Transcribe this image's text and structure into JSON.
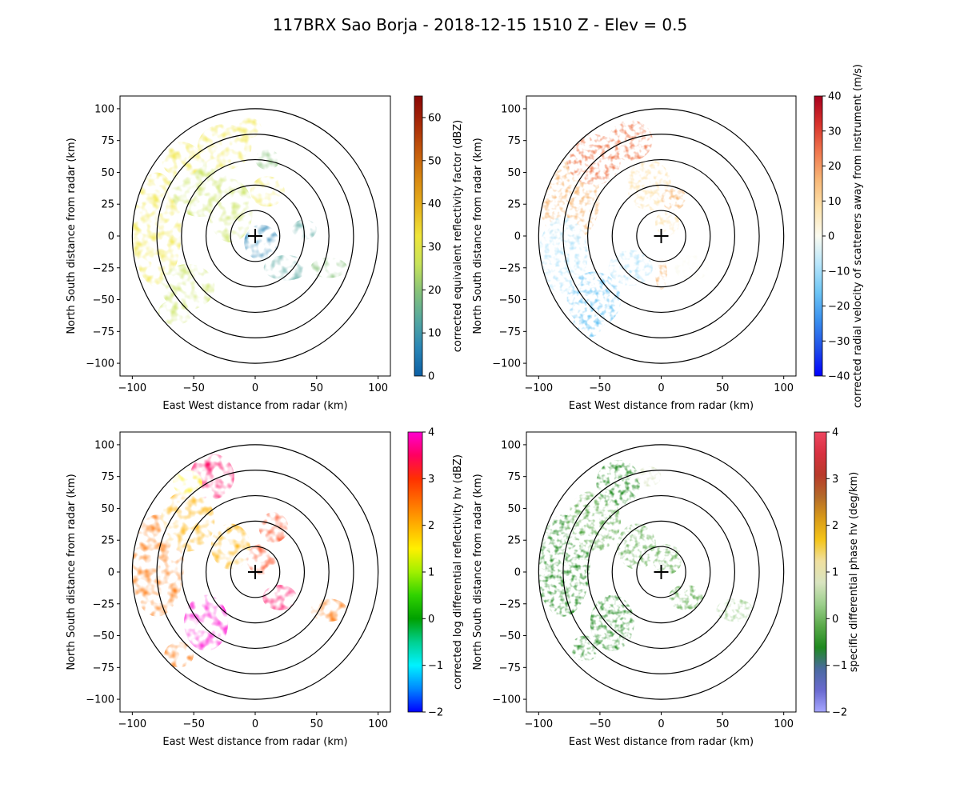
{
  "figure": {
    "title": "117BRX Sao Borja - 2018-12-15 1510 Z -  Elev = 0.5"
  },
  "chart_data": [
    {
      "type": "heatmap",
      "panel": "top-left",
      "variable": "corrected equivalent reflectivity factor",
      "title": "",
      "xlabel": "East West distance from radar (km)",
      "ylabel": "North South distance from radar (km)",
      "xlim": [
        -110,
        110
      ],
      "ylim": [
        -110,
        110
      ],
      "xticks": [
        -100,
        -50,
        0,
        50,
        100
      ],
      "yticks": [
        -100,
        -75,
        -50,
        -25,
        0,
        25,
        50,
        75,
        100
      ],
      "range_rings_km": [
        20,
        40,
        60,
        80,
        100
      ],
      "radar_location": [
        0,
        0
      ],
      "colorbar": {
        "label": "corrected equivalent reflectivity factor (dBZ)",
        "vmin": 0,
        "vmax": 65,
        "ticks": [
          0,
          10,
          20,
          30,
          40,
          50,
          60
        ],
        "colors": [
          "#0b5fa5",
          "#2a86b6",
          "#55a8a0",
          "#86c27a",
          "#c7e35a",
          "#efe53a",
          "#e7b41e",
          "#d98a12",
          "#c45a0c",
          "#a82a08",
          "#8a0606"
        ]
      }
    },
    {
      "type": "heatmap",
      "panel": "top-right",
      "variable": "corrected radial velocity of scatterers away from instrument",
      "title": "",
      "xlabel": "East West distance from radar (km)",
      "ylabel": "North South distance from radar (km)",
      "xlim": [
        -110,
        110
      ],
      "ylim": [
        -110,
        110
      ],
      "xticks": [
        -100,
        -50,
        0,
        50,
        100
      ],
      "yticks": [
        -100,
        -75,
        -50,
        -25,
        0,
        25,
        50,
        75,
        100
      ],
      "range_rings_km": [
        20,
        40,
        60,
        80,
        100
      ],
      "radar_location": [
        0,
        0
      ],
      "colorbar": {
        "label": "corrected radial velocity of scatterers away from instrument (m/s)",
        "vmin": -40,
        "vmax": 40,
        "ticks": [
          -40,
          -30,
          -20,
          -10,
          0,
          10,
          20,
          30,
          40
        ],
        "colors": [
          "#0000ff",
          "#2050e8",
          "#3a90ee",
          "#6ec6f5",
          "#b8e6fb",
          "#fbfbf0",
          "#fde3ad",
          "#f8b878",
          "#f0784e",
          "#d8322c",
          "#a8001e"
        ]
      }
    },
    {
      "type": "heatmap",
      "panel": "bottom-left",
      "variable": "corrected log differential reflectivity hv",
      "title": "",
      "xlabel": "East West distance from radar (km)",
      "ylabel": "North South distance from radar (km)",
      "xlim": [
        -110,
        110
      ],
      "ylim": [
        -110,
        110
      ],
      "xticks": [
        -100,
        -50,
        0,
        50,
        100
      ],
      "yticks": [
        -100,
        -75,
        -50,
        -25,
        0,
        25,
        50,
        75,
        100
      ],
      "range_rings_km": [
        20,
        40,
        60,
        80,
        100
      ],
      "radar_location": [
        0,
        0
      ],
      "colorbar": {
        "label": "corrected log differential reflectivity hv (dBZ)",
        "vmin": -2,
        "vmax": 4,
        "ticks": [
          -2,
          -1,
          0,
          1,
          2,
          3,
          4
        ],
        "colors": [
          "#0000ff",
          "#0088ff",
          "#00f2ff",
          "#00d090",
          "#00a000",
          "#30d200",
          "#a0f000",
          "#fff000",
          "#ffb000",
          "#ff7000",
          "#ff3000",
          "#ff0060",
          "#ff00d0"
        ]
      }
    },
    {
      "type": "heatmap",
      "panel": "bottom-right",
      "variable": "specific differential phase hv",
      "title": "",
      "xlabel": "East West distance from radar (km)",
      "ylabel": "North South distance from radar (km)",
      "xlim": [
        -110,
        110
      ],
      "ylim": [
        -110,
        110
      ],
      "xticks": [
        -100,
        -50,
        0,
        50,
        100
      ],
      "yticks": [
        -100,
        -75,
        -50,
        -25,
        0,
        25,
        50,
        75,
        100
      ],
      "range_rings_km": [
        20,
        40,
        60,
        80,
        100
      ],
      "radar_location": [
        0,
        0
      ],
      "colorbar": {
        "label": "specific differential phase hv (deg/km)",
        "vmin": -2,
        "vmax": 4,
        "ticks": [
          -2,
          -1,
          0,
          1,
          2,
          3,
          4
        ],
        "colors": [
          "#a6a6ff",
          "#6a6ad0",
          "#4a6aa0",
          "#1f8a1f",
          "#5aaa4a",
          "#9ccf8c",
          "#d8e4c0",
          "#f0e0a0",
          "#f4c418",
          "#d89a18",
          "#b46a2a",
          "#b83a2a",
          "#d83040",
          "#ee4560"
        ]
      }
    }
  ]
}
